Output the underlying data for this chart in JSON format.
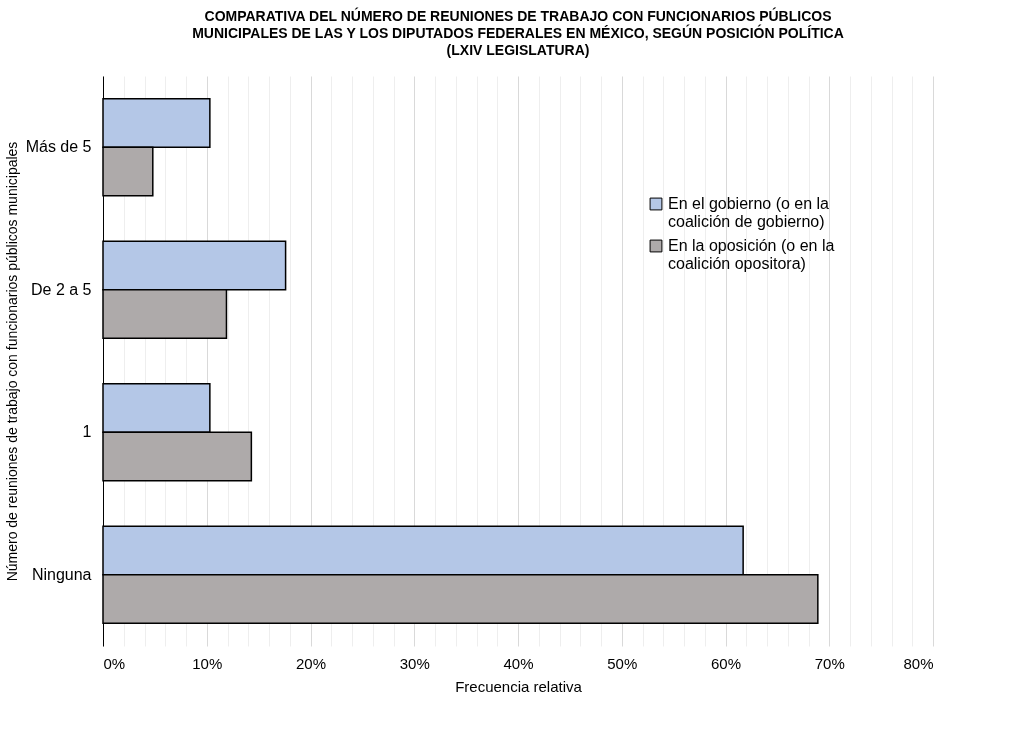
{
  "chart_data": {
    "type": "bar",
    "orientation": "horizontal",
    "title": "COMPARATIVA DEL NÚMERO DE REUNIONES DE TRABAJO CON FUNCIONARIOS PÚBLICOS MUNICIPALES DE LAS Y LOS DIPUTADOS FEDERALES EN MÉXICO, SEGÚN POSICIÓN POLÍTICA (LXIV LEGISLATURA)",
    "xlabel": "Frecuencia relativa",
    "ylabel": "Número de reuniones de trabajo con funcionarios públicos municipales",
    "categories": [
      "Más de 5",
      "De 2 a 5",
      "1",
      "Ninguna"
    ],
    "series": [
      {
        "name": "En el gobierno (o en la coalición de gobierno)",
        "color": "#b4c7e7",
        "values": [
          10.3,
          17.6,
          10.3,
          61.7
        ]
      },
      {
        "name": "En la oposición (o en la coalición opositora)",
        "color": "#aeaaaa",
        "values": [
          4.8,
          11.9,
          14.3,
          68.9
        ]
      }
    ],
    "xlim": [
      0,
      80
    ],
    "xticks": [
      {
        "value": 0,
        "label": "0%"
      },
      {
        "value": 2,
        "label": null
      },
      {
        "value": 4,
        "label": null
      },
      {
        "value": 6,
        "label": null
      },
      {
        "value": 8,
        "label": null
      },
      {
        "value": 10,
        "label": "10%"
      },
      {
        "value": 12,
        "label": null
      },
      {
        "value": 14,
        "label": null
      },
      {
        "value": 16,
        "label": null
      },
      {
        "value": 18,
        "label": null
      },
      {
        "value": 20,
        "label": "20%"
      },
      {
        "value": 22,
        "label": null
      },
      {
        "value": 24,
        "label": null
      },
      {
        "value": 26,
        "label": null
      },
      {
        "value": 28,
        "label": null
      },
      {
        "value": 30,
        "label": "30%"
      },
      {
        "value": 32,
        "label": null
      },
      {
        "value": 34,
        "label": null
      },
      {
        "value": 36,
        "label": null
      },
      {
        "value": 38,
        "label": null
      },
      {
        "value": 40,
        "label": "40%"
      },
      {
        "value": 42,
        "label": null
      },
      {
        "value": 44,
        "label": null
      },
      {
        "value": 46,
        "label": null
      },
      {
        "value": 48,
        "label": null
      },
      {
        "value": 50,
        "label": "50%"
      },
      {
        "value": 52,
        "label": null
      },
      {
        "value": 54,
        "label": null
      },
      {
        "value": 56,
        "label": null
      },
      {
        "value": 58,
        "label": null
      },
      {
        "value": 60,
        "label": "60%"
      },
      {
        "value": 62,
        "label": null
      },
      {
        "value": 64,
        "label": null
      },
      {
        "value": 66,
        "label": null
      },
      {
        "value": 68,
        "label": null
      },
      {
        "value": 70,
        "label": "70%"
      },
      {
        "value": 72,
        "label": null
      },
      {
        "value": 74,
        "label": null
      },
      {
        "value": 76,
        "label": null
      },
      {
        "value": 78,
        "label": null
      },
      {
        "value": 80,
        "label": "80%"
      }
    ],
    "grid": "x",
    "legend": "top right"
  }
}
